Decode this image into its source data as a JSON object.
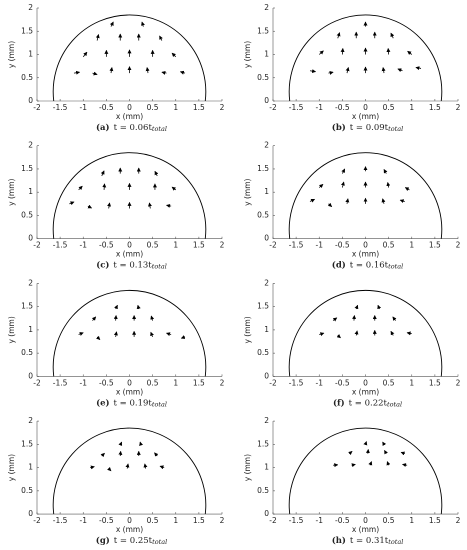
{
  "chart_data": [
    {
      "type": "quiver",
      "caption_label": "(a)",
      "caption_text": "t = 0.06t",
      "caption_sub": "total",
      "x_label": "x (mm)",
      "y_label": "y (mm)",
      "xlim": [
        -2,
        2
      ],
      "ylim": [
        0,
        2
      ],
      "xticks": [
        -2,
        -1.5,
        -1,
        -0.5,
        0,
        0.5,
        1,
        1.5,
        2
      ],
      "yticks": [
        0,
        0.5,
        1,
        1.5,
        2
      ],
      "droplet": {
        "center": [
          0,
          0.2
        ],
        "radius": 1.65
      },
      "color": "#000000",
      "vectors": [
        [
          -1.2,
          0.6,
          0.12,
          0.02
        ],
        [
          -0.8,
          0.6,
          0.1,
          -0.03
        ],
        [
          -0.4,
          0.6,
          0.02,
          0.12
        ],
        [
          0,
          0.6,
          0,
          0.14
        ],
        [
          0.4,
          0.6,
          -0.02,
          0.12
        ],
        [
          0.8,
          0.6,
          -0.1,
          0.02
        ],
        [
          1.2,
          0.6,
          -0.1,
          0.03
        ],
        [
          -1,
          0.95,
          0.08,
          0.1
        ],
        [
          -0.5,
          0.95,
          0,
          0.14
        ],
        [
          0,
          0.95,
          0,
          0.15
        ],
        [
          0.5,
          0.95,
          0,
          0.14
        ],
        [
          1,
          0.95,
          -0.08,
          0.08
        ],
        [
          -0.7,
          1.3,
          0.03,
          0.13
        ],
        [
          -0.2,
          1.3,
          0,
          0.14
        ],
        [
          0.2,
          1.3,
          0,
          0.14
        ],
        [
          0.7,
          1.3,
          -0.05,
          0.1
        ],
        [
          -0.4,
          1.6,
          0.05,
          0.1
        ],
        [
          0.3,
          1.6,
          -0.03,
          0.1
        ]
      ]
    },
    {
      "type": "quiver",
      "caption_label": "(b)",
      "caption_text": "t = 0.09t",
      "caption_sub": "total",
      "x_label": "x (mm)",
      "y_label": "y (mm)",
      "xlim": [
        -2,
        2
      ],
      "ylim": [
        0,
        2
      ],
      "xticks": [
        -2,
        -1.5,
        -1,
        -0.5,
        0,
        0.5,
        1,
        1.5,
        2
      ],
      "yticks": [
        0,
        0.5,
        1,
        1.5,
        2
      ],
      "droplet": {
        "center": [
          0,
          0.2
        ],
        "radius": 1.65
      },
      "color": "#000000",
      "vectors": [
        [
          -1.2,
          0.65,
          0.12,
          -0.02
        ],
        [
          -0.8,
          0.6,
          0.1,
          0.02
        ],
        [
          -0.4,
          0.6,
          0.03,
          0.12
        ],
        [
          0,
          0.6,
          0,
          0.13
        ],
        [
          0.4,
          0.6,
          -0.02,
          0.12
        ],
        [
          0.8,
          0.65,
          -0.1,
          0.04
        ],
        [
          1.2,
          0.7,
          -0.11,
          0.02
        ],
        [
          -1,
          1,
          0.09,
          0.08
        ],
        [
          -0.5,
          1,
          0.01,
          0.13
        ],
        [
          0,
          1,
          0,
          0.14
        ],
        [
          0.5,
          1,
          -0.01,
          0.13
        ],
        [
          1,
          1,
          -0.09,
          0.07
        ],
        [
          -0.6,
          1.35,
          0.04,
          0.12
        ],
        [
          -0.2,
          1.35,
          0,
          0.13
        ],
        [
          0.2,
          1.35,
          0,
          0.13
        ],
        [
          0.6,
          1.35,
          -0.05,
          0.11
        ],
        [
          0,
          1.6,
          0,
          0.1
        ]
      ]
    },
    {
      "type": "quiver",
      "caption_label": "(c)",
      "caption_text": "t = 0.13t",
      "caption_sub": "total",
      "x_label": "x (mm)",
      "y_label": "y (mm)",
      "xlim": [
        -2,
        2
      ],
      "ylim": [
        0,
        2
      ],
      "xticks": [
        -2,
        -1.5,
        -1,
        -0.5,
        0,
        0.5,
        1,
        1.5,
        2
      ],
      "yticks": [
        0,
        0.5,
        1,
        1.5,
        2
      ],
      "droplet": {
        "center": [
          0,
          0.2
        ],
        "radius": 1.65
      },
      "color": "#000000",
      "vectors": [
        [
          -1.3,
          0.75,
          0.1,
          0.04
        ],
        [
          -0.9,
          0.7,
          0.08,
          -0.04
        ],
        [
          -0.45,
          0.65,
          0.02,
          0.12
        ],
        [
          0,
          0.65,
          0,
          0.13
        ],
        [
          0.45,
          0.65,
          -0.02,
          0.12
        ],
        [
          0.9,
          0.7,
          -0.1,
          0.02
        ],
        [
          -1.1,
          1.05,
          0.08,
          0.08
        ],
        [
          -0.55,
          1.05,
          0.01,
          0.13
        ],
        [
          0,
          1.05,
          0,
          0.14
        ],
        [
          0.55,
          1.05,
          0,
          0.13
        ],
        [
          1,
          1.05,
          -0.08,
          0.06
        ],
        [
          -0.6,
          1.35,
          0.05,
          0.11
        ],
        [
          -0.2,
          1.4,
          0,
          0.12
        ],
        [
          0.2,
          1.4,
          0,
          0.12
        ],
        [
          0.6,
          1.35,
          -0.05,
          0.1
        ]
      ]
    },
    {
      "type": "quiver",
      "caption_label": "(d)",
      "caption_text": "t = 0.16t",
      "caption_sub": "total",
      "x_label": "x (mm)",
      "y_label": "y (mm)",
      "xlim": [
        -2,
        2
      ],
      "ylim": [
        0,
        2
      ],
      "xticks": [
        -2,
        -1.5,
        -1,
        -0.5,
        0,
        0.5,
        1,
        1.5,
        2
      ],
      "yticks": [
        0,
        0.5,
        1,
        1.5,
        2
      ],
      "droplet": {
        "center": [
          0,
          0.2
        ],
        "radius": 1.65
      },
      "color": "#000000",
      "vectors": [
        [
          -1.2,
          0.8,
          0.1,
          0.05
        ],
        [
          -0.8,
          0.75,
          0.07,
          -0.06
        ],
        [
          -0.4,
          0.75,
          0.02,
          0.11
        ],
        [
          0,
          0.75,
          0,
          0.12
        ],
        [
          0.4,
          0.75,
          -0.03,
          0.11
        ],
        [
          0.85,
          0.8,
          -0.1,
          0.03
        ],
        [
          -1,
          1.1,
          0.08,
          0.07
        ],
        [
          -0.5,
          1.1,
          0.03,
          0.12
        ],
        [
          0,
          1.1,
          0,
          0.12
        ],
        [
          0.5,
          1.1,
          -0.02,
          0.11
        ],
        [
          0.95,
          1.05,
          -0.09,
          0.05
        ],
        [
          -0.5,
          1.4,
          0.05,
          0.1
        ],
        [
          0,
          1.45,
          0,
          0.1
        ],
        [
          0.45,
          1.4,
          -0.05,
          0.09
        ]
      ]
    },
    {
      "type": "quiver",
      "caption_label": "(e)",
      "caption_text": "t = 0.19t",
      "caption_sub": "total",
      "x_label": "x (mm)",
      "y_label": "y (mm)",
      "xlim": [
        -2,
        2
      ],
      "ylim": [
        0,
        2
      ],
      "xticks": [
        -2,
        -1.5,
        -1,
        -0.5,
        0,
        0.5,
        1,
        1.5,
        2
      ],
      "yticks": [
        0,
        0.5,
        1,
        1.5,
        2
      ],
      "droplet": {
        "center": [
          0,
          0.2
        ],
        "radius": 1.65
      },
      "color": "#000000",
      "vectors": [
        [
          -1.1,
          0.9,
          0.1,
          0.04
        ],
        [
          -0.7,
          0.85,
          0.06,
          -0.06
        ],
        [
          -0.3,
          0.85,
          0.02,
          0.11
        ],
        [
          0.1,
          0.85,
          0,
          0.12
        ],
        [
          0.5,
          0.85,
          -0.04,
          0.1
        ],
        [
          0.9,
          0.9,
          -0.1,
          0.03
        ],
        [
          1.2,
          0.85,
          -0.08,
          -0.03
        ],
        [
          -0.8,
          1.2,
          0.07,
          0.08
        ],
        [
          -0.3,
          1.2,
          0.01,
          0.11
        ],
        [
          0.1,
          1.2,
          0,
          0.11
        ],
        [
          0.5,
          1.2,
          -0.03,
          0.1
        ],
        [
          -0.3,
          1.45,
          0.04,
          0.08
        ],
        [
          0.2,
          1.45,
          -0.02,
          0.08
        ]
      ]
    },
    {
      "type": "quiver",
      "caption_label": "(f)",
      "caption_text": "t = 0.22t",
      "caption_sub": "total",
      "x_label": "x (mm)",
      "y_label": "y (mm)",
      "xlim": [
        -2,
        2
      ],
      "ylim": [
        0,
        2
      ],
      "xticks": [
        -2,
        -1.5,
        -1,
        -0.5,
        0,
        0.5,
        1,
        1.5,
        2
      ],
      "yticks": [
        0,
        0.5,
        1,
        1.5,
        2
      ],
      "droplet": {
        "center": [
          0,
          0.2
        ],
        "radius": 1.65
      },
      "color": "#000000",
      "vectors": [
        [
          -1,
          0.9,
          0.1,
          0.03
        ],
        [
          -0.6,
          0.88,
          0.06,
          -0.05
        ],
        [
          -0.2,
          0.88,
          0.02,
          0.1
        ],
        [
          0.2,
          0.88,
          0,
          0.11
        ],
        [
          0.6,
          0.88,
          -0.05,
          0.09
        ],
        [
          1,
          0.92,
          -0.1,
          0.02
        ],
        [
          -0.7,
          1.2,
          0.08,
          0.06
        ],
        [
          -0.25,
          1.2,
          0.01,
          0.11
        ],
        [
          0.2,
          1.2,
          0,
          0.11
        ],
        [
          0.65,
          1.2,
          -0.06,
          0.08
        ],
        [
          -0.2,
          1.45,
          0.03,
          0.08
        ],
        [
          0.3,
          1.45,
          -0.03,
          0.08
        ]
      ]
    },
    {
      "type": "quiver",
      "caption_label": "(g)",
      "caption_text": "t = 0.25t",
      "caption_sub": "total",
      "x_label": "x (mm)",
      "y_label": "y (mm)",
      "xlim": [
        -2,
        2
      ],
      "ylim": [
        0,
        2
      ],
      "xticks": [
        -2,
        -1.5,
        -1,
        -0.5,
        0,
        0.5,
        1,
        1.5,
        2
      ],
      "yticks": [
        0,
        0.5,
        1,
        1.5,
        2
      ],
      "droplet": {
        "center": [
          0,
          0.2
        ],
        "radius": 1.65
      },
      "color": "#000000",
      "vectors": [
        [
          -0.85,
          1,
          0.09,
          0.02
        ],
        [
          -0.45,
          0.98,
          0.05,
          -0.05
        ],
        [
          -0.05,
          0.98,
          0.02,
          0.1
        ],
        [
          0.35,
          0.98,
          -0.02,
          0.1
        ],
        [
          0.75,
          1,
          -0.09,
          0.03
        ],
        [
          -0.6,
          1.25,
          0.06,
          0.06
        ],
        [
          -0.2,
          1.25,
          0.01,
          0.1
        ],
        [
          0.2,
          1.25,
          0,
          0.1
        ],
        [
          0.6,
          1.25,
          -0.06,
          0.07
        ],
        [
          -0.2,
          1.48,
          0.03,
          0.07
        ],
        [
          0.25,
          1.48,
          -0.02,
          0.07
        ]
      ]
    },
    {
      "type": "quiver",
      "caption_label": "(h)",
      "caption_text": "t = 0.31t",
      "caption_sub": "total",
      "x_label": "x (mm)",
      "y_label": "y (mm)",
      "xlim": [
        -2,
        2
      ],
      "ylim": [
        0,
        2
      ],
      "xticks": [
        -2,
        -1.5,
        -1,
        -0.5,
        0,
        0.5,
        1,
        1.5,
        2
      ],
      "yticks": [
        0,
        0.5,
        1,
        1.5,
        2
      ],
      "droplet": {
        "center": [
          0,
          0.2
        ],
        "radius": 1.65
      },
      "color": "#000000",
      "vectors": [
        [
          -0.7,
          1.05,
          0.1,
          0.01
        ],
        [
          -0.3,
          1.05,
          0.08,
          0.02
        ],
        [
          0.1,
          1.05,
          0.03,
          0.08
        ],
        [
          0.5,
          1.05,
          -0.03,
          0.08
        ],
        [
          0.9,
          1.05,
          -0.1,
          0.02
        ],
        [
          -0.35,
          1.3,
          0.06,
          0.05
        ],
        [
          0.05,
          1.3,
          0.01,
          0.09
        ],
        [
          0.45,
          1.3,
          -0.04,
          0.07
        ],
        [
          0.85,
          1.3,
          -0.08,
          0.03
        ],
        [
          0,
          1.5,
          0.02,
          0.06
        ],
        [
          0.4,
          1.5,
          -0.03,
          0.05
        ]
      ]
    }
  ]
}
